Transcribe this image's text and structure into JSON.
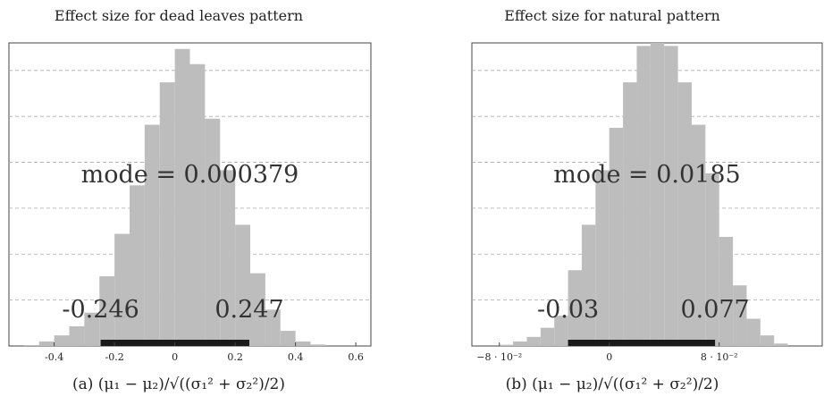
{
  "chart_data": [
    {
      "type": "bar",
      "title": "Effect size for dead leaves pattern",
      "caption": "(a) (μ₁ − μ₂)/√((σ₁² + σ₂²)/2)",
      "xlabel": "",
      "ylabel": "",
      "xlim": [
        -0.55,
        0.65
      ],
      "xticks": [
        -0.4,
        -0.2,
        0,
        0.2,
        0.4,
        0.6
      ],
      "xtick_labels": [
        "-0.4",
        "-0.2",
        "0",
        "0.2",
        "0.4",
        "0.6"
      ],
      "ylim": [
        0,
        1.0
      ],
      "grid": true,
      "bin_width": 0.05,
      "bin_starts": [
        -0.5,
        -0.45,
        -0.4,
        -0.35,
        -0.3,
        -0.25,
        -0.2,
        -0.15,
        -0.1,
        -0.05,
        0,
        0.05,
        0.1,
        0.15,
        0.2,
        0.25,
        0.3,
        0.35,
        0.4,
        0.45
      ],
      "values": [
        0.003,
        0.015,
        0.035,
        0.065,
        0.11,
        0.23,
        0.37,
        0.53,
        0.73,
        0.87,
        0.98,
        0.93,
        0.75,
        0.58,
        0.4,
        0.24,
        0.12,
        0.05,
        0.015,
        0.005
      ],
      "mode_text": "mode = 0.000379",
      "hdi": [
        -0.246,
        0.247
      ],
      "hdi_low_label": "-0.246",
      "hdi_high_label": "0.247",
      "bar_color": "#bdbdbd",
      "hdi_color": "#1a1a1a"
    },
    {
      "type": "bar",
      "title": "Effect size for natural pattern",
      "caption": "(b) (μ₁ − μ₂)/√((σ₁² + σ₂²)/2)",
      "xlabel": "",
      "ylabel": "",
      "xlim": [
        -0.1,
        0.155
      ],
      "xticks": [
        -0.08,
        0,
        0.08
      ],
      "xtick_labels": [
        "−8 · 10⁻²",
        "0",
        "8 · 10⁻²"
      ],
      "ylim": [
        0,
        1.0
      ],
      "grid": true,
      "bin_width": 0.01,
      "bin_starts": [
        -0.08,
        -0.07,
        -0.06,
        -0.05,
        -0.04,
        -0.03,
        -0.02,
        -0.01,
        0,
        0.01,
        0.02,
        0.03,
        0.04,
        0.05,
        0.06,
        0.07,
        0.08,
        0.09,
        0.1,
        0.11,
        0.12
      ],
      "values": [
        0.004,
        0.015,
        0.03,
        0.06,
        0.1,
        0.25,
        0.4,
        0.58,
        0.72,
        0.87,
        0.99,
        1.0,
        0.99,
        0.87,
        0.73,
        0.57,
        0.36,
        0.2,
        0.09,
        0.035,
        0.008
      ],
      "mode_text": "mode = 0.0185",
      "hdi": [
        -0.03,
        0.077
      ],
      "hdi_low_label": "-0.03",
      "hdi_high_label": "0.077",
      "bar_color": "#bdbdbd",
      "hdi_color": "#1a1a1a"
    }
  ]
}
